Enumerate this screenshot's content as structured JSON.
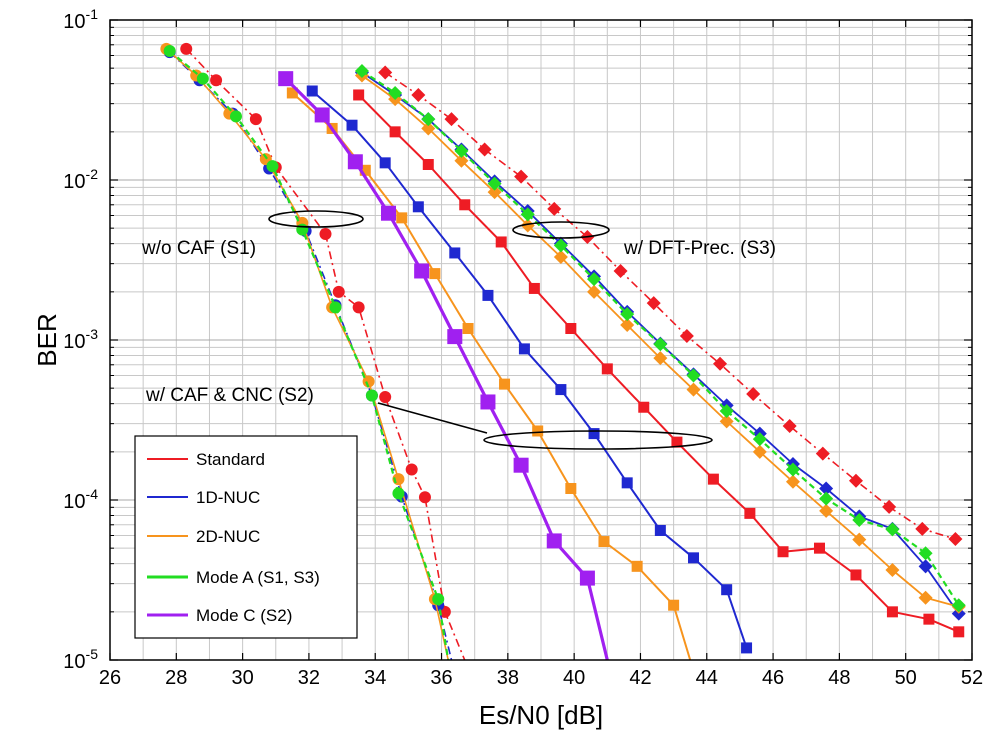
{
  "chart_data": {
    "type": "line",
    "title": "",
    "xlabel": "Es/N0 [dB]",
    "ylabel": "BER",
    "xlim": [
      26,
      52
    ],
    "ylim": [
      1e-05,
      0.1
    ],
    "yscale": "log",
    "grid": true,
    "x_ticks": [
      26,
      28,
      30,
      32,
      34,
      36,
      38,
      40,
      42,
      44,
      46,
      48,
      50,
      52
    ],
    "y_ticks": [
      {
        "value": 0.1,
        "base": "10",
        "exp": "-1"
      },
      {
        "value": 0.01,
        "base": "10",
        "exp": "-2"
      },
      {
        "value": 0.001,
        "base": "10",
        "exp": "-3"
      },
      {
        "value": 0.0001,
        "base": "10",
        "exp": "-4"
      },
      {
        "value": 1e-05,
        "base": "10",
        "exp": "-5"
      }
    ],
    "legend": {
      "position": "bottom-left",
      "entries": [
        {
          "name": "Standard",
          "color": "#ee1c24"
        },
        {
          "name": "1D-NUC",
          "color": "#1f28d0"
        },
        {
          "name": "2D-NUC",
          "color": "#f7941d"
        },
        {
          "name": "Mode A (S1, S3)",
          "color": "#22dd22"
        },
        {
          "name": "Mode C (S2)",
          "color": "#a020f0"
        }
      ]
    },
    "annotations": [
      {
        "text": "w/o CAF (S1)"
      },
      {
        "text": "w/ DFT-Prec. (S3)"
      },
      {
        "text": "w/ CAF & CNC (S2)"
      }
    ],
    "series": [
      {
        "group": "S1",
        "kind": "Standard",
        "color": "#ee1c24",
        "dash": "8,4,2,4",
        "width": 1.6,
        "marker": "circle",
        "x": [
          28.3,
          29.2,
          30.4,
          31.0,
          32.5,
          32.9,
          33.5,
          34.3,
          35.1,
          35.5,
          36.1,
          36.7
        ],
        "y": [
          0.066,
          0.042,
          0.024,
          0.012,
          0.0046,
          0.002,
          0.0016,
          0.00044,
          0.000155,
          0.000104,
          2e-05,
          1e-05
        ]
      },
      {
        "group": "S1",
        "kind": "1D-NUC",
        "color": "#1f28d0",
        "dash": "8,4,2,4",
        "width": 1.6,
        "marker": "circle",
        "x": [
          27.8,
          28.7,
          29.7,
          30.8,
          31.9,
          32.8,
          33.9,
          34.8,
          35.9,
          36.3
        ],
        "y": [
          0.063,
          0.042,
          0.026,
          0.0118,
          0.0048,
          0.00165,
          0.00045,
          0.000105,
          2.2e-05,
          1e-05
        ]
      },
      {
        "group": "S1",
        "kind": "2D-NUC",
        "color": "#f7941d",
        "dash": "",
        "width": 1.6,
        "marker": "circle",
        "x": [
          27.7,
          28.6,
          29.6,
          30.7,
          31.8,
          32.7,
          33.8,
          34.7,
          35.8,
          36.2
        ],
        "y": [
          0.066,
          0.045,
          0.026,
          0.0135,
          0.0054,
          0.0016,
          0.00055,
          0.000135,
          2.4e-05,
          1e-05
        ]
      },
      {
        "group": "S1",
        "kind": "Mode A (S1, S3)",
        "color": "#22dd22",
        "dash": "6,4",
        "width": 2.2,
        "marker": "circle",
        "x": [
          27.8,
          28.8,
          29.8,
          30.9,
          31.8,
          32.8,
          33.9,
          34.7,
          35.9,
          36.2
        ],
        "y": [
          0.064,
          0.043,
          0.025,
          0.0122,
          0.0049,
          0.0016,
          0.00045,
          0.00011,
          2.4e-05,
          1e-05
        ]
      },
      {
        "group": "S2",
        "kind": "Standard",
        "color": "#ee1c24",
        "dash": "",
        "width": 2.0,
        "marker": "square",
        "x": [
          33.5,
          34.6,
          35.6,
          36.7,
          37.8,
          38.8,
          39.9,
          41.0,
          42.1,
          43.1,
          44.2,
          45.3,
          46.3,
          47.4,
          48.5,
          49.6,
          50.7,
          51.6
        ],
        "y": [
          0.034,
          0.02,
          0.0125,
          0.007,
          0.0041,
          0.0021,
          0.00118,
          0.00066,
          0.00038,
          0.00023,
          0.000135,
          8.25e-05,
          4.75e-05,
          5e-05,
          3.4e-05,
          2e-05,
          1.8e-05,
          1.5e-05
        ]
      },
      {
        "group": "S2",
        "kind": "1D-NUC",
        "color": "#1f28d0",
        "dash": "",
        "width": 2.0,
        "marker": "square",
        "x": [
          32.1,
          33.3,
          34.3,
          35.3,
          36.4,
          37.4,
          38.5,
          39.6,
          40.6,
          41.6,
          42.6,
          43.6,
          44.6,
          45.2
        ],
        "y": [
          0.036,
          0.022,
          0.0128,
          0.0068,
          0.0035,
          0.0019,
          0.00088,
          0.00049,
          0.00026,
          0.000128,
          6.45e-05,
          4.35e-05,
          2.75e-05,
          1.19e-05
        ]
      },
      {
        "group": "S2",
        "kind": "2D-NUC",
        "color": "#f7941d",
        "dash": "",
        "width": 2.0,
        "marker": "square",
        "x": [
          31.5,
          32.7,
          33.7,
          34.8,
          35.8,
          36.8,
          37.9,
          38.9,
          39.9,
          40.9,
          41.9,
          43.0,
          43.5
        ],
        "y": [
          0.035,
          0.021,
          0.0115,
          0.0058,
          0.0026,
          0.00118,
          0.00053,
          0.00027,
          0.000118,
          5.5e-05,
          3.85e-05,
          2.2e-05,
          1e-05
        ]
      },
      {
        "group": "S2",
        "kind": "Mode C (S2)",
        "color": "#a020f0",
        "dash": "",
        "width": 3.2,
        "marker": "bigsquare",
        "x": [
          31.3,
          32.4,
          33.4,
          34.4,
          35.4,
          36.4,
          37.4,
          38.4,
          39.4,
          40.4,
          41.0
        ],
        "y": [
          0.043,
          0.0255,
          0.013,
          0.0062,
          0.0027,
          0.00105,
          0.00041,
          0.000165,
          5.55e-05,
          3.25e-05,
          1e-05
        ]
      },
      {
        "group": "S3",
        "kind": "Standard",
        "color": "#ee1c24",
        "dash": "8,4,2,4",
        "width": 1.6,
        "marker": "diamond",
        "x": [
          34.3,
          35.3,
          36.3,
          37.3,
          38.4,
          39.4,
          40.4,
          41.4,
          42.4,
          43.4,
          44.4,
          45.4,
          46.5,
          47.5,
          48.5,
          49.5,
          50.5,
          51.5
        ],
        "y": [
          0.047,
          0.034,
          0.024,
          0.0155,
          0.0105,
          0.0066,
          0.0044,
          0.0027,
          0.0017,
          0.00106,
          0.00071,
          0.00046,
          0.00029,
          0.000195,
          0.000132,
          9.05e-05,
          6.6e-05,
          5.7e-05
        ]
      },
      {
        "group": "S3",
        "kind": "1D-NUC",
        "color": "#1f28d0",
        "dash": "",
        "width": 1.8,
        "marker": "diamond",
        "x": [
          33.6,
          34.6,
          35.6,
          36.6,
          37.6,
          38.6,
          39.6,
          40.6,
          41.6,
          42.6,
          43.6,
          44.6,
          45.6,
          46.6,
          47.6,
          48.6,
          49.6,
          50.6,
          51.6
        ],
        "y": [
          0.047,
          0.034,
          0.024,
          0.0155,
          0.0098,
          0.0064,
          0.004,
          0.0025,
          0.0015,
          0.00095,
          0.00061,
          0.00039,
          0.00026,
          0.000168,
          0.000118,
          7.9e-05,
          6.6e-05,
          3.85e-05,
          1.95e-05
        ]
      },
      {
        "group": "S3",
        "kind": "2D-NUC",
        "color": "#f7941d",
        "dash": "",
        "width": 1.8,
        "marker": "diamond",
        "x": [
          33.6,
          34.6,
          35.6,
          36.6,
          37.6,
          38.6,
          39.6,
          40.6,
          41.6,
          42.6,
          43.6,
          44.6,
          45.6,
          46.6,
          47.6,
          48.6,
          49.6,
          50.6,
          51.6
        ],
        "y": [
          0.045,
          0.032,
          0.021,
          0.0132,
          0.0084,
          0.0052,
          0.0033,
          0.002,
          0.00124,
          0.00077,
          0.00049,
          0.00031,
          0.0002,
          0.00013,
          8.55e-05,
          5.65e-05,
          3.65e-05,
          2.45e-05,
          2.15e-05
        ]
      },
      {
        "group": "S3",
        "kind": "Mode A (S1, S3)",
        "color": "#22dd22",
        "dash": "6,4",
        "width": 2.2,
        "marker": "diamond",
        "x": [
          33.6,
          34.6,
          35.6,
          36.6,
          37.6,
          38.6,
          39.6,
          40.6,
          41.6,
          42.6,
          43.6,
          44.6,
          45.6,
          46.6,
          47.6,
          48.6,
          49.6,
          50.6,
          51.6
        ],
        "y": [
          0.048,
          0.035,
          0.024,
          0.0152,
          0.0095,
          0.0061,
          0.0039,
          0.0024,
          0.00145,
          0.00094,
          0.0006,
          0.00036,
          0.00024,
          0.000155,
          0.000102,
          7.5e-05,
          6.55e-05,
          4.65e-05,
          2.2e-05
        ]
      }
    ]
  }
}
